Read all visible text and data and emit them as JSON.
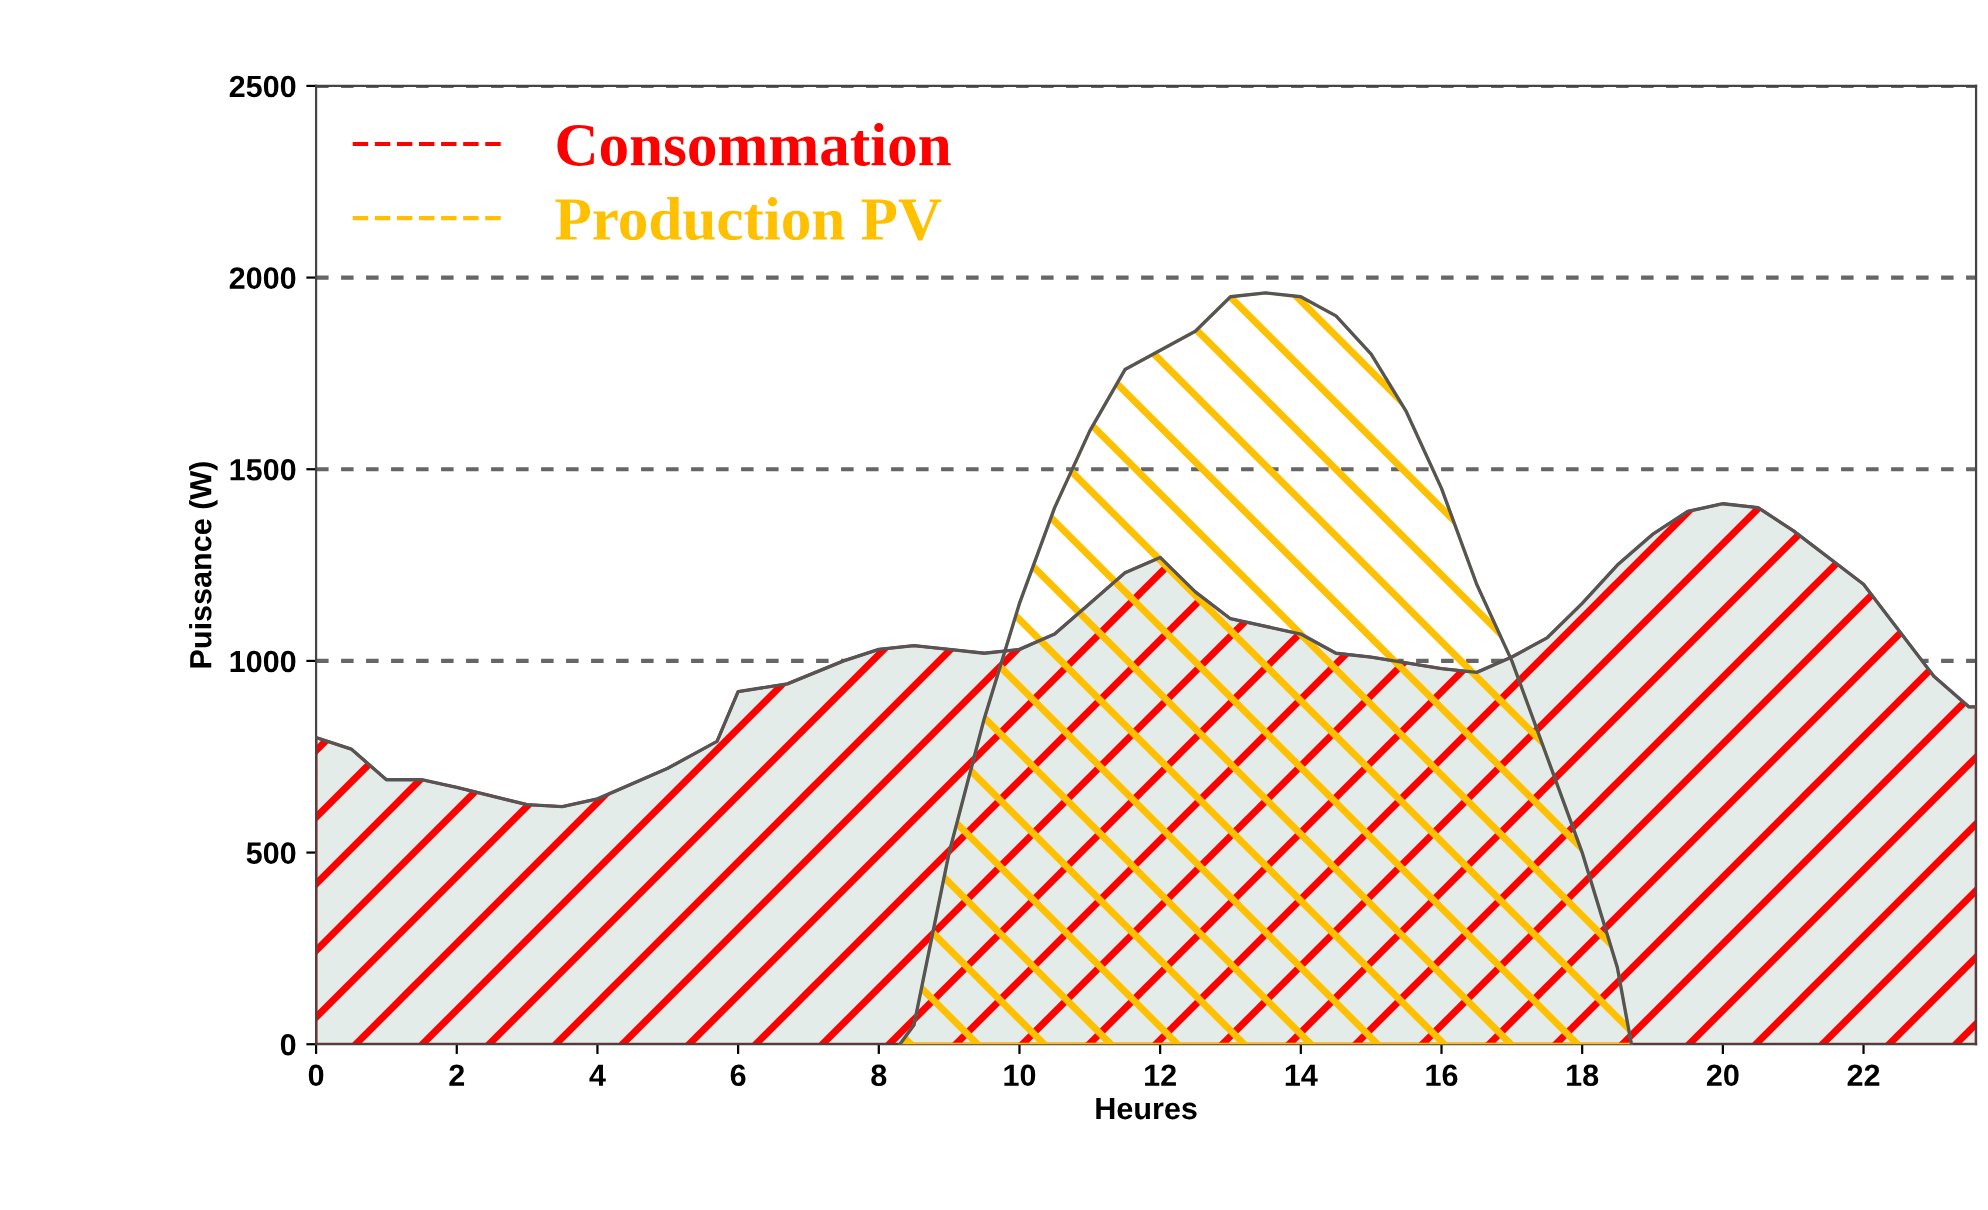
{
  "chart_data": {
    "type": "area",
    "xlabel": "Heures",
    "ylabel": "Puissance (W)",
    "xlim": [
      0,
      23.6
    ],
    "xticks": [
      0,
      2,
      4,
      6,
      8,
      10,
      12,
      14,
      16,
      18,
      20,
      22
    ],
    "ylim": [
      0,
      2500
    ],
    "yticks": [
      0,
      500,
      1000,
      1500,
      2000,
      2500
    ],
    "grid": "y",
    "legend": "top left",
    "line_style": "dashed",
    "series": [
      {
        "name": "Consommation",
        "color": "#ff0000",
        "x": [
          0,
          0.5,
          1,
          1.5,
          2,
          3,
          3.5,
          4,
          5,
          5.7,
          6,
          6.7,
          7.5,
          8,
          8.5,
          9,
          9.5,
          10,
          10.5,
          11,
          11.5,
          12,
          12.5,
          13,
          14,
          14.5,
          15,
          16,
          16.5,
          17,
          17.5,
          18,
          18.5,
          19,
          19.5,
          20,
          20.5,
          21,
          22,
          23,
          23.5,
          23.6
        ],
        "values": [
          800,
          770,
          690,
          690,
          670,
          625,
          620,
          640,
          720,
          790,
          920,
          940,
          1000,
          1030,
          1040,
          1030,
          1020,
          1030,
          1070,
          1150,
          1230,
          1270,
          1180,
          1110,
          1070,
          1020,
          1010,
          980,
          970,
          1010,
          1060,
          1150,
          1250,
          1330,
          1390,
          1410,
          1400,
          1340,
          1200,
          960,
          880,
          880
        ]
      },
      {
        "name": "Production PV",
        "color": "#ffc000",
        "x": [
          8.3,
          8.5,
          9,
          9.5,
          10,
          10.5,
          11,
          11.5,
          12.5,
          13,
          13.5,
          14,
          14.5,
          15,
          15.5,
          16,
          16.5,
          17,
          17.5,
          18,
          18.5,
          18.7
        ],
        "values": [
          0,
          50,
          500,
          850,
          1150,
          1400,
          1600,
          1760,
          1860,
          1950,
          1960,
          1950,
          1900,
          1800,
          1650,
          1450,
          1200,
          1000,
          750,
          500,
          200,
          0
        ]
      }
    ]
  }
}
